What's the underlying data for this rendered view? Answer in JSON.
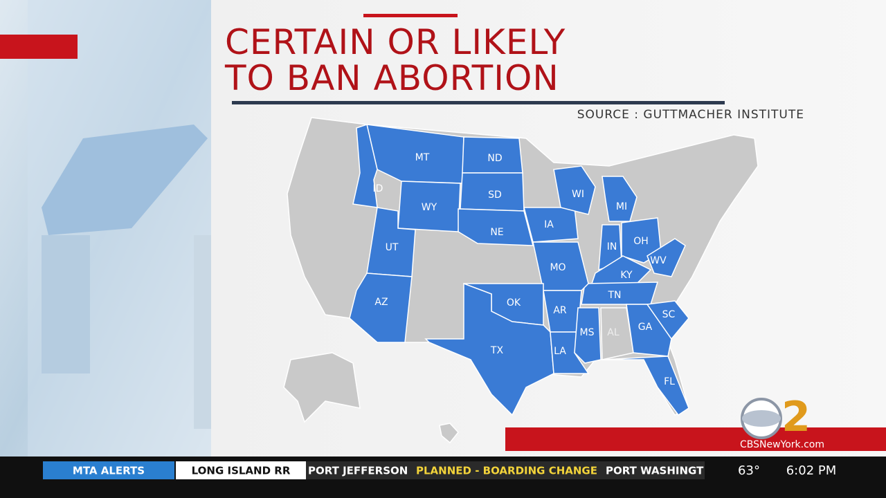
{
  "header": {
    "title_line1": "CERTAIN OR LIKELY",
    "title_line2": "TO BAN ABORTION",
    "source": "SOURCE : GUTTMACHER INSTITUTE"
  },
  "map": {
    "states": [
      {
        "label": "MT",
        "color": "#3a7bd5"
      },
      {
        "label": "ND",
        "color": "#3a7bd5"
      },
      {
        "label": "ID",
        "color": "#3a7bd5"
      },
      {
        "label": "SD",
        "color": "#3a7bd5"
      },
      {
        "label": "WY",
        "color": "#3a7bd5"
      },
      {
        "label": "NE",
        "color": "#3a7bd5"
      },
      {
        "label": "UT",
        "color": "#3a7bd5"
      },
      {
        "label": "AZ",
        "color": "#3a7bd5"
      },
      {
        "label": "IA",
        "color": "#3a7bd5"
      },
      {
        "label": "WI",
        "color": "#3a7bd5"
      },
      {
        "label": "MI",
        "color": "#3a7bd5"
      },
      {
        "label": "IN",
        "color": "#3a7bd5"
      },
      {
        "label": "OH",
        "color": "#3a7bd5"
      },
      {
        "label": "WV",
        "color": "#3a7bd5"
      },
      {
        "label": "KY",
        "color": "#3a7bd5"
      },
      {
        "label": "TN",
        "color": "#3a7bd5"
      },
      {
        "label": "MO",
        "color": "#3a7bd5"
      },
      {
        "label": "AR",
        "color": "#3a7bd5"
      },
      {
        "label": "OK",
        "color": "#3a7bd5"
      },
      {
        "label": "TX",
        "color": "#3a7bd5"
      },
      {
        "label": "LA",
        "color": "#3a7bd5"
      },
      {
        "label": "MS",
        "color": "#3a7bd5"
      },
      {
        "label": "AL",
        "color": "#c9c9c9"
      },
      {
        "label": "GA",
        "color": "#3a7bd5"
      },
      {
        "label": "SC",
        "color": "#3a7bd5"
      },
      {
        "label": "FL",
        "color": "#3a7bd5"
      }
    ]
  },
  "logo": {
    "mark": "2",
    "site": "CBSNewYork.com"
  },
  "ticker": {
    "section1": "MTA ALERTS",
    "section2": "LONG ISLAND RR",
    "items": [
      "PORT JEFFERSON",
      "PLANNED - BOARDING CHANGE",
      "PORT WASHINGT"
    ],
    "temperature": "63°",
    "time": "6:02 PM"
  }
}
